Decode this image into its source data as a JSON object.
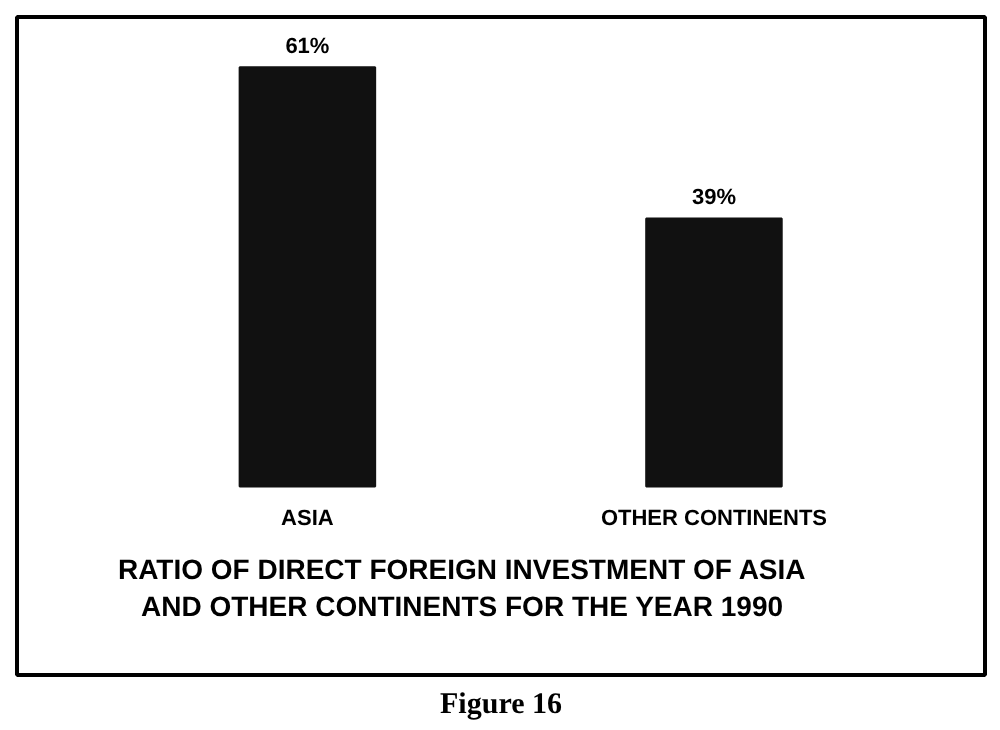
{
  "chart_data": {
    "type": "bar",
    "title": "RATIO OF DIRECT FOREIGN INVESTMENT OF ASIA\nAND OTHER CONTINENTS FOR THE YEAR 1990",
    "categories": [
      "ASIA",
      "OTHER CONTINENTS"
    ],
    "values": [
      61,
      39
    ],
    "color": "#111111",
    "value_labels": [
      "61%",
      "39%"
    ],
    "annotations": [
      "Figure 16"
    ]
  }
}
